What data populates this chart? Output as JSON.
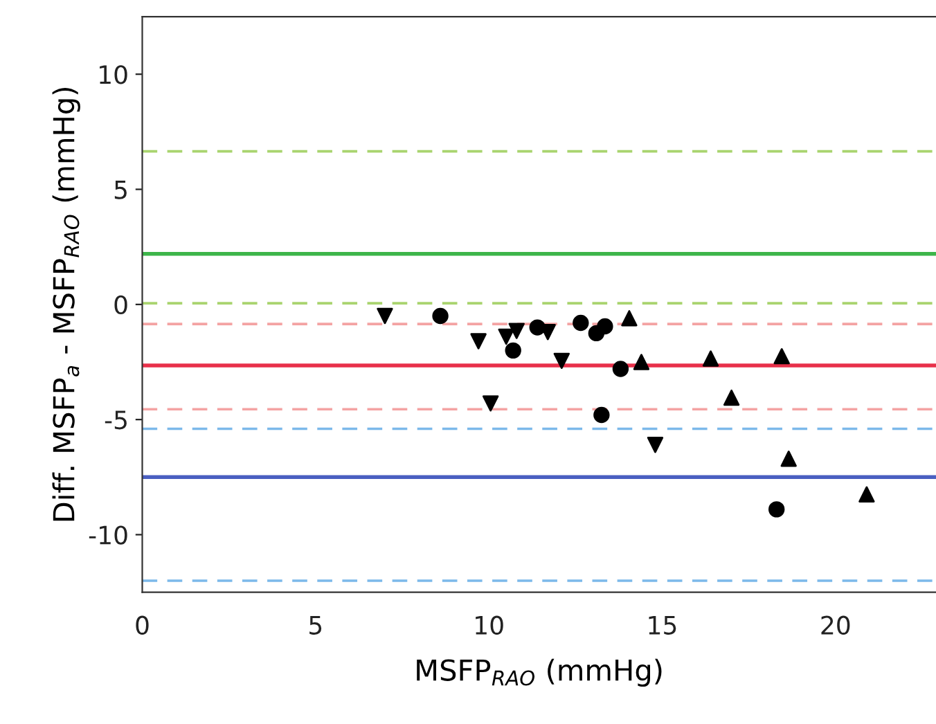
{
  "chart_data": {
    "type": "scatter",
    "xlabel": "MSFP$_{RAO}$ (mmHg)",
    "ylabel": "Diff. MSFP$_{a}$ - MSFP$_{RAO}$ (mmHg)",
    "xlim": [
      0,
      22.9
    ],
    "ylim": [
      -12.5,
      12.5
    ],
    "xticks": [
      0,
      5,
      10,
      15,
      20
    ],
    "yticks": [
      -10,
      -5,
      0,
      5,
      10
    ],
    "grid": false,
    "legend": false,
    "series": [
      {
        "color": "#000000",
        "marker": "triangle_down",
        "x": [
          7.0,
          9.7,
          10.5,
          10.8,
          11.7,
          12.1,
          10.05,
          14.8
        ],
        "values": [
          -0.5,
          -1.6,
          -1.4,
          -1.15,
          -1.2,
          -2.45,
          -4.3,
          -6.1
        ]
      },
      {
        "color": "#000000",
        "marker": "circle",
        "x": [
          8.6,
          10.7,
          11.4,
          12.65,
          13.1,
          13.35,
          13.8,
          13.25,
          18.3
        ],
        "values": [
          -0.5,
          -2.0,
          -1.0,
          -0.8,
          -1.25,
          -0.95,
          -2.8,
          -4.8,
          -8.9
        ]
      },
      {
        "color": "#000000",
        "marker": "triangle",
        "x": [
          14.05,
          14.4,
          16.4,
          18.45,
          17.0,
          18.65,
          20.9
        ],
        "values": [
          -0.6,
          -2.5,
          -2.35,
          -2.25,
          -4.05,
          -6.7,
          -8.25
        ]
      }
    ],
    "ref_lines": [
      {
        "axis": "y",
        "value": 2.2,
        "color": "#3db54a",
        "line_style": "solid"
      },
      {
        "axis": "y",
        "value": 6.65,
        "color": "#a9d46f",
        "line_style": "dashed"
      },
      {
        "axis": "y",
        "value": 0.05,
        "color": "#a9d46f",
        "line_style": "dashed"
      },
      {
        "axis": "y",
        "value": -2.65,
        "color": "#e8304a",
        "line_style": "solid"
      },
      {
        "axis": "y",
        "value": -0.85,
        "color": "#f4a3a3",
        "line_style": "dashed"
      },
      {
        "axis": "y",
        "value": -4.55,
        "color": "#f4a3a3",
        "line_style": "dashed"
      },
      {
        "axis": "y",
        "value": -7.5,
        "color": "#4a5fc1",
        "line_style": "solid"
      },
      {
        "axis": "y",
        "value": -5.4,
        "color": "#7cb9ea",
        "line_style": "dashed"
      },
      {
        "axis": "y",
        "value": -12.0,
        "color": "#7cb9ea",
        "line_style": "dashed"
      }
    ]
  }
}
